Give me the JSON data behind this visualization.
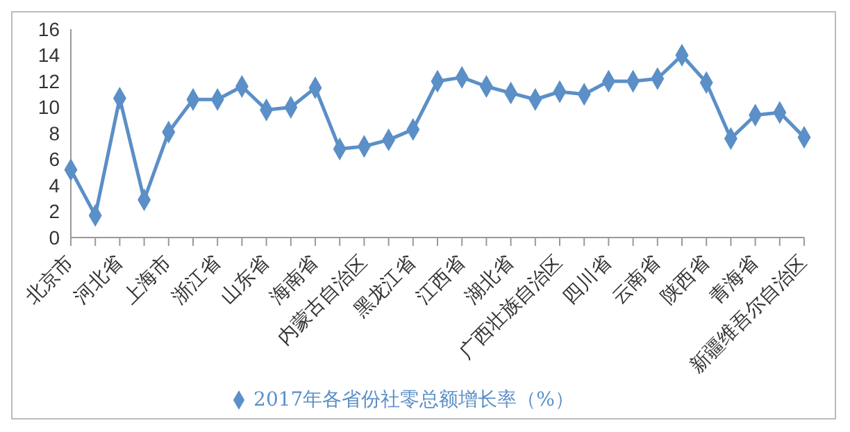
{
  "chart_data": {
    "type": "line",
    "categories": [
      "北京市",
      null,
      "河北省",
      null,
      "上海市",
      null,
      "浙江省",
      null,
      "山东省",
      null,
      "海南省",
      null,
      "内蒙古自治区",
      null,
      "黑龙江省",
      null,
      "江西省",
      null,
      "湖北省",
      null,
      "广西壮族自治区",
      null,
      "四川省",
      null,
      "云南省",
      null,
      "陕西省",
      null,
      "青海省",
      null,
      "新疆维吾尔自治区"
    ],
    "series": [
      {
        "name": "2017年各省份社零总额增长率（%）",
        "color": "#5b8fc7",
        "values": [
          5.2,
          1.7,
          10.7,
          2.9,
          8.1,
          10.6,
          10.6,
          11.6,
          9.8,
          10.0,
          11.5,
          6.8,
          7.0,
          7.5,
          8.3,
          12.0,
          12.3,
          11.6,
          11.1,
          10.6,
          11.2,
          11.0,
          12.0,
          12.0,
          12.2,
          14.0,
          11.9,
          7.6,
          9.4,
          9.6,
          7.7
        ]
      }
    ],
    "ylim": [
      0,
      16
    ],
    "yticks": [
      0,
      2,
      4,
      6,
      8,
      10,
      12,
      14,
      16
    ],
    "grid": false,
    "legend": "bottom",
    "marker": "diamond",
    "line_style": "solid"
  }
}
